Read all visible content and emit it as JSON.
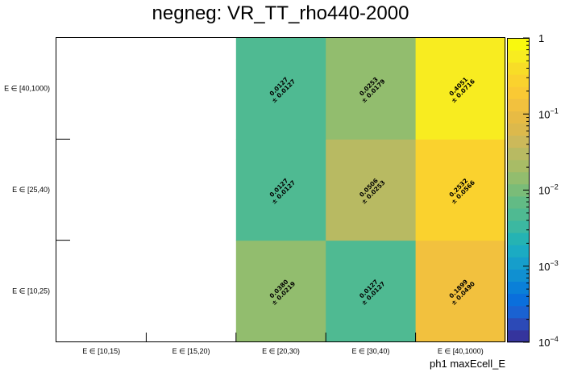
{
  "chart_data": {
    "type": "heatmap",
    "title": "negneg: VR_TT_rho440-2000",
    "xlabel": "ph1 maxEcell_E",
    "ylabel": "",
    "x_categories": [
      "E ∈ [10,15)",
      "E ∈ [15,20)",
      "E ∈ [20,30)",
      "E ∈ [30,40)",
      "E ∈ [40,1000)"
    ],
    "y_categories": [
      "E ∈ [10,25)",
      "E ∈ [25,40)",
      "E ∈ [40,1000)"
    ],
    "z_scale": "log",
    "z_range": [
      0.0001,
      1
    ],
    "z_ticks": [
      {
        "value": 1,
        "label": "1",
        "exp": ""
      },
      {
        "value": 0.1,
        "label": "10",
        "exp": "−1"
      },
      {
        "value": 0.01,
        "label": "10",
        "exp": "−2"
      },
      {
        "value": 0.001,
        "label": "10",
        "exp": "−3"
      },
      {
        "value": 0.0001,
        "label": "10",
        "exp": "−4"
      }
    ],
    "cells": [
      {
        "x": 2,
        "y": 0,
        "value": 0.038,
        "value_label": "0.0380",
        "error_label": "± 0.0219",
        "color": "#92bd6e"
      },
      {
        "x": 3,
        "y": 0,
        "value": 0.0127,
        "value_label": "0.0127",
        "error_label": "± 0.0127",
        "color": "#4fba92"
      },
      {
        "x": 4,
        "y": 0,
        "value": 0.1899,
        "value_label": "0.1899",
        "error_label": "± 0.0490",
        "color": "#f2c13e"
      },
      {
        "x": 2,
        "y": 1,
        "value": 0.0127,
        "value_label": "0.0127",
        "error_label": "± 0.0127",
        "color": "#4fba92"
      },
      {
        "x": 3,
        "y": 1,
        "value": 0.0506,
        "value_label": "0.0506",
        "error_label": "± 0.0253",
        "color": "#b8ba62"
      },
      {
        "x": 4,
        "y": 1,
        "value": 0.2532,
        "value_label": "0.2532",
        "error_label": "± 0.0566",
        "color": "#fad22e"
      },
      {
        "x": 2,
        "y": 2,
        "value": 0.0127,
        "value_label": "0.0127",
        "error_label": "± 0.0127",
        "color": "#4fba92"
      },
      {
        "x": 3,
        "y": 2,
        "value": 0.0253,
        "value_label": "0.0253",
        "error_label": "± 0.0179",
        "color": "#92bd6e"
      },
      {
        "x": 4,
        "y": 2,
        "value": 0.4051,
        "value_label": "0.4051",
        "error_label": "± 0.0716",
        "color": "#f8ec20"
      }
    ],
    "palette": [
      "#35349d",
      "#2c4ab7",
      "#1a62d2",
      "#0a6fdc",
      "#0a80d8",
      "#1090d1",
      "#169ecb",
      "#1babc3",
      "#25b3b3",
      "#3cb8a1",
      "#4fba92",
      "#62bb85",
      "#7abc78",
      "#92bd6e",
      "#a8bc66",
      "#b8ba62",
      "#ccb95a",
      "#dcb94c",
      "#e7bb44",
      "#f2c13e",
      "#fac934",
      "#fad22e",
      "#f8dd27",
      "#f8ec20",
      "#f9f90e"
    ]
  }
}
